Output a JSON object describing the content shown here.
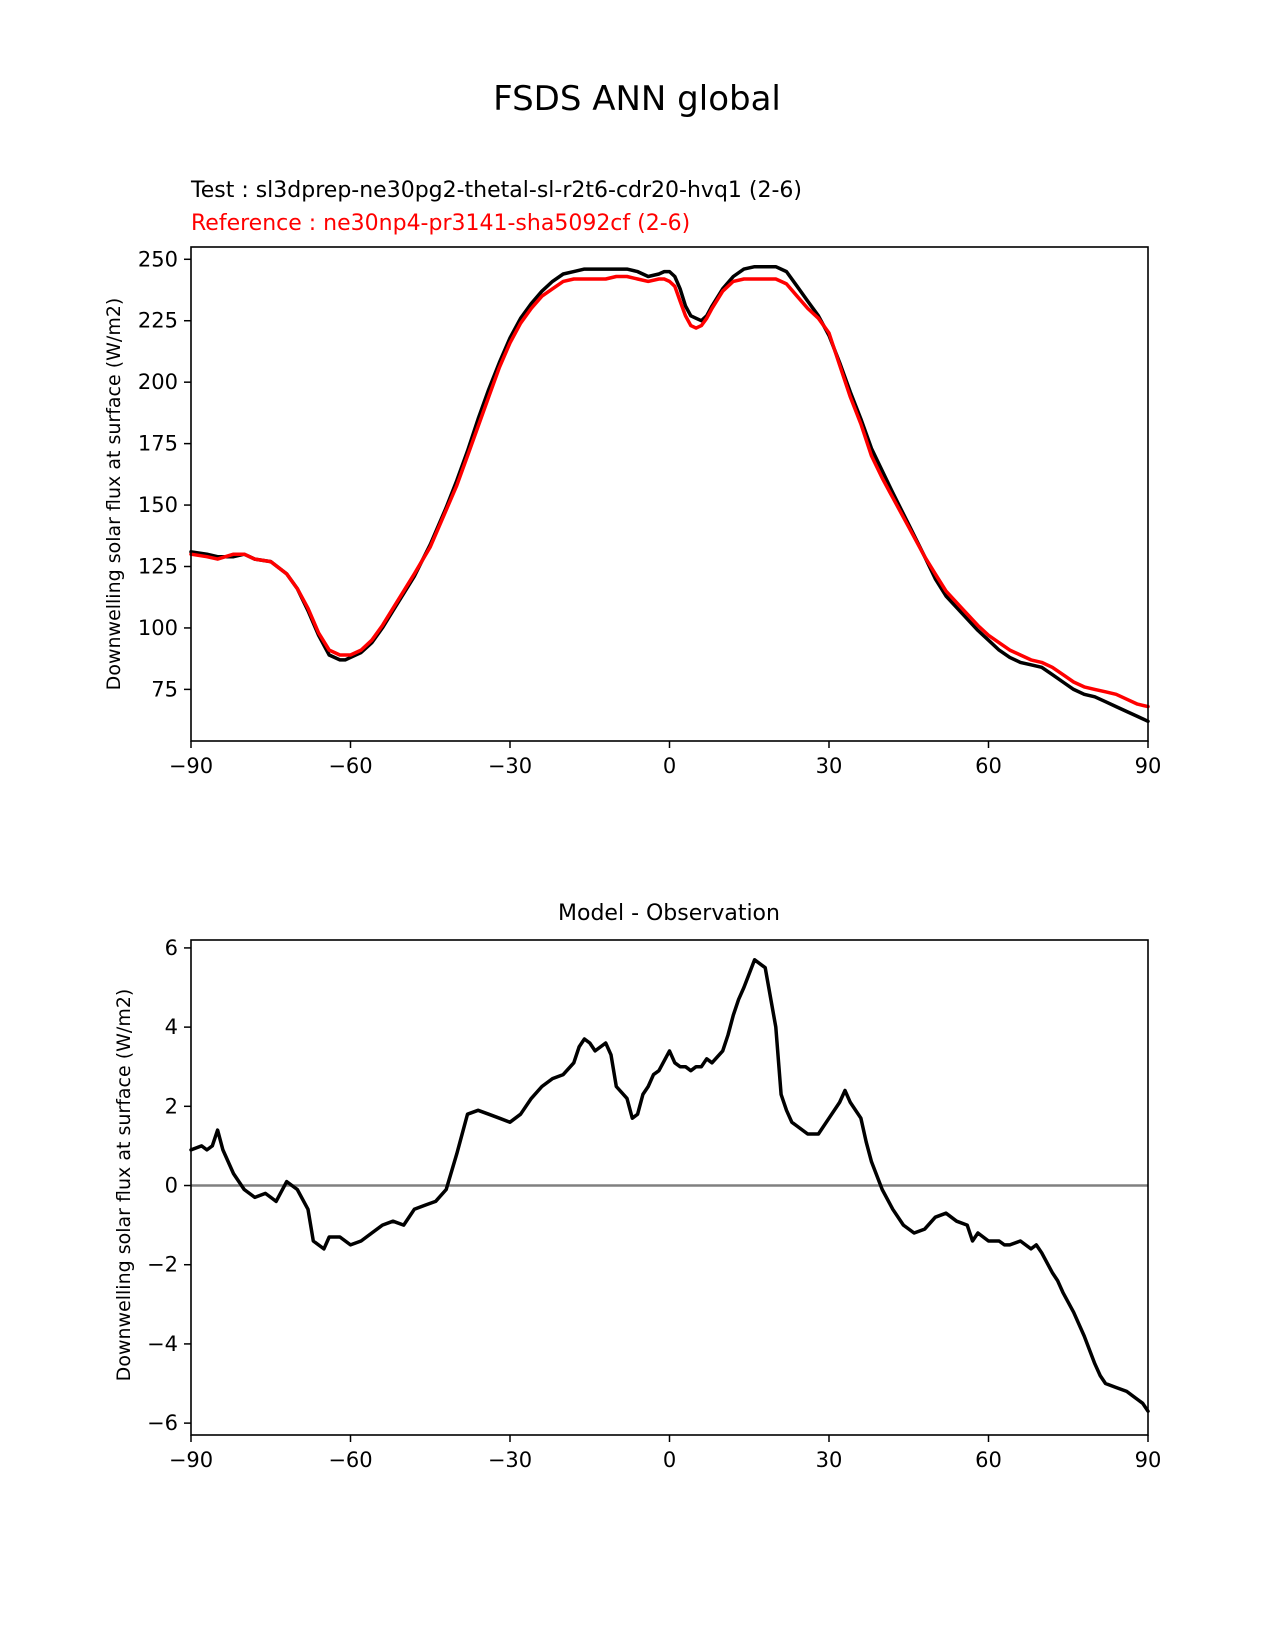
{
  "figure_title": "FSDS ANN global",
  "chart_data": [
    {
      "type": "line",
      "test_label": "Test : sl3dprep-ne30pg2-thetal-sl-r2t6-cdr20-hvq1 (2-6)",
      "reference_label": "Reference : ne30np4-pr3141-sha5092cf (2-6)",
      "ylabel": "Downwelling solar flux at surface (W/m2)",
      "xlim": [
        -90,
        90
      ],
      "ylim": [
        54,
        255
      ],
      "xticks": [
        -90,
        -60,
        -30,
        0,
        30,
        60,
        90
      ],
      "yticks": [
        75,
        100,
        125,
        150,
        175,
        200,
        225,
        250
      ],
      "colors": {
        "test": "#000000",
        "reference": "#ff0000"
      },
      "series": [
        {
          "key": "test",
          "x": [
            -90,
            -87,
            -85,
            -82,
            -80,
            -78,
            -75,
            -72,
            -70,
            -68,
            -66,
            -64,
            -62,
            -61,
            -60,
            -58,
            -56,
            -54,
            -52,
            -50,
            -48,
            -45,
            -42,
            -40,
            -38,
            -36,
            -34,
            -32,
            -30,
            -28,
            -26,
            -24,
            -22,
            -20,
            -18,
            -16,
            -14,
            -12,
            -10,
            -8,
            -6,
            -4,
            -2,
            -1,
            0,
            1,
            2,
            3,
            4,
            5,
            6,
            7,
            8,
            10,
            12,
            14,
            16,
            18,
            20,
            21,
            22,
            24,
            26,
            28,
            30,
            32,
            34,
            36,
            38,
            40,
            42,
            45,
            48,
            50,
            52,
            55,
            58,
            60,
            62,
            64,
            66,
            68,
            70,
            72,
            74,
            76,
            78,
            80,
            82,
            84,
            86,
            88,
            90
          ],
          "y": [
            131,
            130,
            129,
            129,
            130,
            128,
            127,
            122,
            116,
            107,
            97,
            89,
            87,
            87,
            88,
            90,
            94,
            100,
            107,
            114,
            121,
            134,
            149,
            160,
            172,
            185,
            197,
            208,
            218,
            226,
            232,
            237,
            241,
            244,
            245,
            246,
            246,
            246,
            246,
            246,
            245,
            243,
            244,
            245,
            245,
            243,
            238,
            231,
            227,
            226,
            225,
            227,
            231,
            238,
            243,
            246,
            247,
            247,
            247,
            246,
            245,
            239,
            233,
            227,
            219,
            208,
            196,
            185,
            173,
            164,
            155,
            142,
            129,
            120,
            113,
            106,
            99,
            95,
            91,
            88,
            86,
            85,
            84,
            81,
            78,
            75,
            73,
            72,
            70,
            68,
            66,
            64,
            62
          ]
        },
        {
          "key": "reference",
          "x": [
            -90,
            -87,
            -85,
            -82,
            -80,
            -78,
            -75,
            -72,
            -70,
            -68,
            -66,
            -64,
            -62,
            -61,
            -60,
            -58,
            -56,
            -54,
            -52,
            -50,
            -48,
            -45,
            -42,
            -40,
            -38,
            -36,
            -34,
            -32,
            -30,
            -28,
            -26,
            -24,
            -22,
            -20,
            -18,
            -16,
            -14,
            -12,
            -10,
            -8,
            -6,
            -4,
            -2,
            -1,
            0,
            1,
            2,
            3,
            4,
            5,
            6,
            7,
            8,
            10,
            12,
            14,
            16,
            18,
            20,
            21,
            22,
            24,
            26,
            28,
            30,
            32,
            34,
            36,
            38,
            40,
            42,
            45,
            48,
            50,
            52,
            55,
            58,
            60,
            62,
            64,
            66,
            68,
            70,
            72,
            74,
            76,
            78,
            80,
            82,
            84,
            86,
            88,
            90
          ],
          "y": [
            130,
            129,
            128,
            130,
            130,
            128,
            127,
            122,
            116,
            108,
            98,
            91,
            89,
            89,
            89,
            91,
            95,
            101,
            108,
            115,
            122,
            133,
            148,
            158,
            170,
            182,
            194,
            206,
            216,
            224,
            230,
            235,
            238,
            241,
            242,
            242,
            242,
            242,
            243,
            243,
            242,
            241,
            242,
            242,
            241,
            239,
            233,
            227,
            223,
            222,
            223,
            226,
            230,
            237,
            241,
            242,
            242,
            242,
            242,
            241,
            240,
            235,
            230,
            226,
            220,
            207,
            194,
            183,
            170,
            161,
            153,
            141,
            129,
            122,
            115,
            108,
            101,
            97,
            94,
            91,
            89,
            87,
            86,
            84,
            81,
            78,
            76,
            75,
            74,
            73,
            71,
            69,
            68
          ]
        }
      ]
    },
    {
      "type": "line",
      "title": "Model - Observation",
      "ylabel": "Downwelling solar flux at surface (W/m2)",
      "xlim": [
        -90,
        90
      ],
      "ylim": [
        -6.3,
        6.2
      ],
      "xticks": [
        -90,
        -60,
        -30,
        0,
        30,
        60,
        90
      ],
      "yticks": [
        -6,
        -4,
        -2,
        0,
        2,
        4,
        6
      ],
      "colors": {
        "difference": "#000000",
        "zero_line": "#808080"
      },
      "series": [
        {
          "key": "difference",
          "x": [
            -90,
            -88,
            -87,
            -86,
            -85,
            -84,
            -82,
            -80,
            -78,
            -76,
            -75,
            -74,
            -72,
            -70,
            -68,
            -67,
            -65,
            -64,
            -62,
            -60,
            -58,
            -56,
            -54,
            -52,
            -50,
            -48,
            -46,
            -44,
            -42,
            -40,
            -38,
            -36,
            -34,
            -32,
            -30,
            -28,
            -26,
            -24,
            -22,
            -20,
            -18,
            -17,
            -16,
            -15,
            -14,
            -12,
            -11,
            -10,
            -8,
            -7,
            -6,
            -5,
            -4,
            -3,
            -2,
            0,
            1,
            2,
            3,
            4,
            5,
            6,
            7,
            8,
            10,
            11,
            12,
            13,
            14,
            16,
            18,
            20,
            21,
            22,
            23,
            24,
            26,
            28,
            30,
            32,
            33,
            34,
            36,
            37,
            38,
            40,
            42,
            44,
            46,
            48,
            50,
            52,
            53,
            54,
            56,
            57,
            58,
            60,
            61,
            62,
            63,
            64,
            66,
            68,
            69,
            70,
            72,
            73,
            74,
            76,
            78,
            80,
            81,
            82,
            84,
            86,
            88,
            89,
            90
          ],
          "y": [
            0.9,
            1.0,
            0.9,
            1.0,
            1.4,
            0.9,
            0.3,
            -0.1,
            -0.3,
            -0.2,
            -0.3,
            -0.4,
            0.1,
            -0.1,
            -0.6,
            -1.4,
            -1.6,
            -1.3,
            -1.3,
            -1.5,
            -1.4,
            -1.2,
            -1.0,
            -0.9,
            -1.0,
            -0.6,
            -0.5,
            -0.4,
            -0.1,
            0.8,
            1.8,
            1.9,
            1.8,
            1.7,
            1.6,
            1.8,
            2.2,
            2.5,
            2.7,
            2.8,
            3.1,
            3.5,
            3.7,
            3.6,
            3.4,
            3.6,
            3.3,
            2.5,
            2.2,
            1.7,
            1.8,
            2.3,
            2.5,
            2.8,
            2.9,
            3.4,
            3.1,
            3.0,
            3.0,
            2.9,
            3.0,
            3.0,
            3.2,
            3.1,
            3.4,
            3.8,
            4.3,
            4.7,
            5.0,
            5.7,
            5.5,
            4.0,
            2.3,
            1.9,
            1.6,
            1.5,
            1.3,
            1.3,
            1.7,
            2.1,
            2.4,
            2.1,
            1.7,
            1.1,
            0.6,
            -0.1,
            -0.6,
            -1.0,
            -1.2,
            -1.1,
            -0.8,
            -0.7,
            -0.8,
            -0.9,
            -1.0,
            -1.4,
            -1.2,
            -1.4,
            -1.4,
            -1.4,
            -1.5,
            -1.5,
            -1.4,
            -1.6,
            -1.5,
            -1.7,
            -2.2,
            -2.4,
            -2.7,
            -3.2,
            -3.8,
            -4.5,
            -4.8,
            -5.0,
            -5.1,
            -5.2,
            -5.4,
            -5.5,
            -5.7
          ]
        }
      ],
      "zero_line": 0
    }
  ]
}
